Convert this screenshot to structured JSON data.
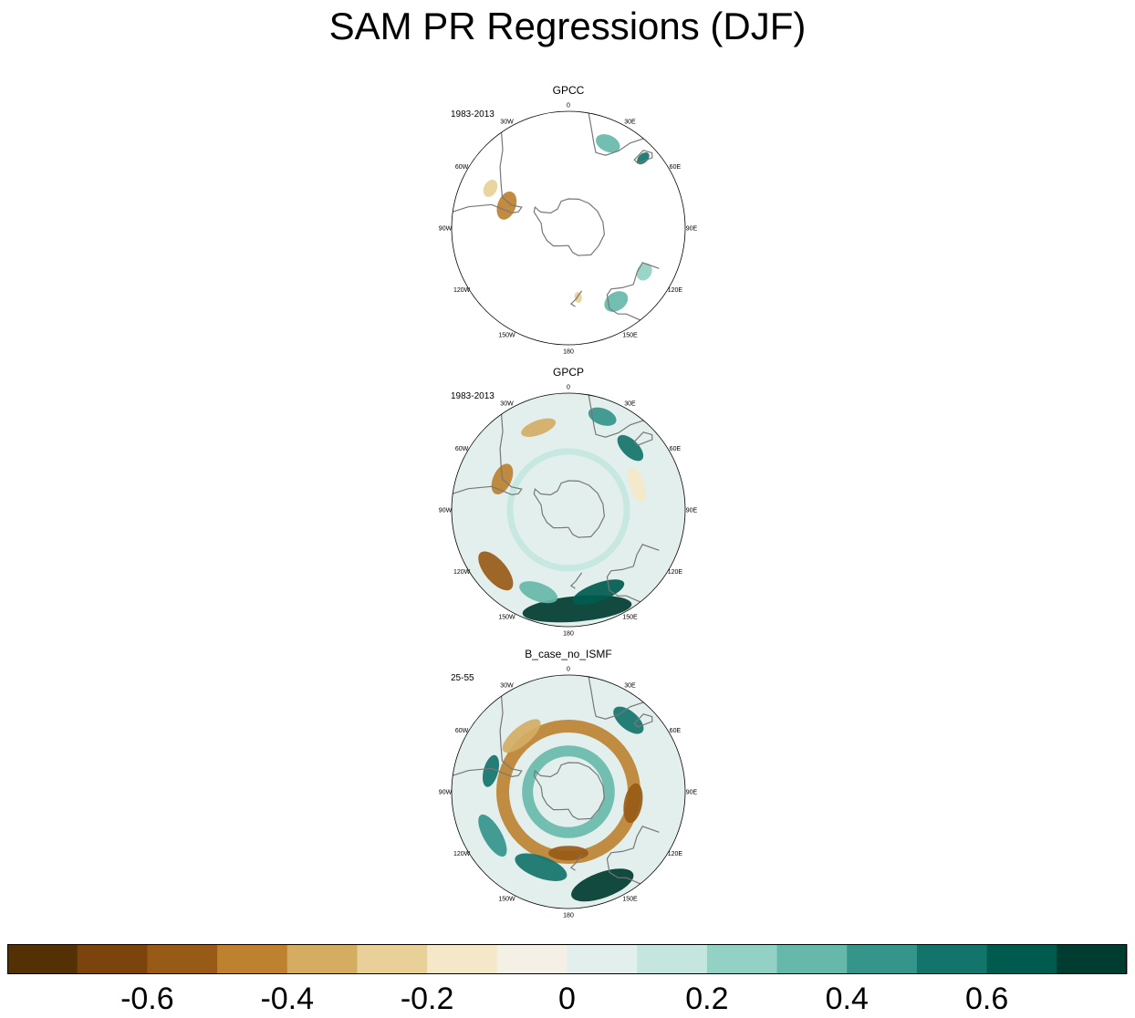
{
  "chart_data": {
    "type": "polar-contour-map",
    "title": "SAM PR Regressions (DJF)",
    "projection": "south-polar stereographic",
    "lon_labels": [
      "0",
      "30E",
      "60E",
      "90E",
      "120E",
      "150E",
      "180",
      "150W",
      "120W",
      "90W",
      "60W",
      "30W"
    ],
    "panels": [
      {
        "name": "GPCC",
        "period": "1983-2013",
        "coverage": "land only",
        "features": [
          {
            "region": "southern South America",
            "lon": -70,
            "lat": -45,
            "value": -0.5
          },
          {
            "region": "southern Africa",
            "lon": 25,
            "lat": -25,
            "value": 0.3
          },
          {
            "region": "eastern Australia",
            "lon": 148,
            "lat": -30,
            "value": 0.35
          },
          {
            "region": "southwest Australia",
            "lon": 118,
            "lat": -32,
            "value": 0.2
          }
        ]
      },
      {
        "name": "GPCP",
        "period": "1983-2013",
        "coverage": "global",
        "features": [
          {
            "region": "Tasman / SW Pacific",
            "lon": 175,
            "lat": -25,
            "value": 0.7
          },
          {
            "region": "SE Pacific",
            "lon": -130,
            "lat": -25,
            "value": -0.55
          },
          {
            "region": "South America",
            "lon": -65,
            "lat": -40,
            "value": -0.45
          },
          {
            "region": "South Atlantic",
            "lon": -20,
            "lat": -30,
            "value": -0.4
          },
          {
            "region": "SE Africa",
            "lon": 45,
            "lat": -30,
            "value": 0.55
          },
          {
            "region": "circumpolar 45-55S",
            "lon": 0,
            "lat": -50,
            "value": 0.15
          }
        ]
      },
      {
        "name": "B_case_no_ISMF",
        "period": "25-55",
        "coverage": "global",
        "features": [
          {
            "region": "mid-latitude dry ring",
            "lat": -45,
            "value": -0.5
          },
          {
            "region": "high-latitude wet ring",
            "lat": -62,
            "value": 0.35
          },
          {
            "region": "E Australia / Tasman",
            "lon": 160,
            "lat": -25,
            "value": 0.7
          },
          {
            "region": "SW Pacific",
            "lon": -160,
            "lat": -40,
            "value": 0.5
          },
          {
            "region": "SE Africa",
            "lon": 40,
            "lat": -28,
            "value": 0.55
          },
          {
            "region": "S America west",
            "lon": -75,
            "lat": -35,
            "value": 0.55
          }
        ]
      }
    ],
    "colorbar": {
      "levels": [
        -0.7,
        -0.6,
        -0.5,
        -0.4,
        -0.3,
        -0.2,
        -0.1,
        0,
        0.1,
        0.2,
        0.3,
        0.4,
        0.5,
        0.6,
        0.7
      ],
      "colors": [
        "#543005",
        "#7a440c",
        "#985b17",
        "#bd812f",
        "#d4ad63",
        "#e8d098",
        "#f5e8c8",
        "#f5f0e5",
        "#e2efed",
        "#c4e6df",
        "#93d1c5",
        "#66b8aa",
        "#35958b",
        "#13746b",
        "#005b4f",
        "#003c30"
      ],
      "tick_labels": [
        "-0.6",
        "-0.4",
        "-0.2",
        "0",
        "0.2",
        "0.4",
        "0.6"
      ],
      "tick_values": [
        -0.6,
        -0.4,
        -0.2,
        0,
        0.2,
        0.4,
        0.6
      ]
    }
  }
}
